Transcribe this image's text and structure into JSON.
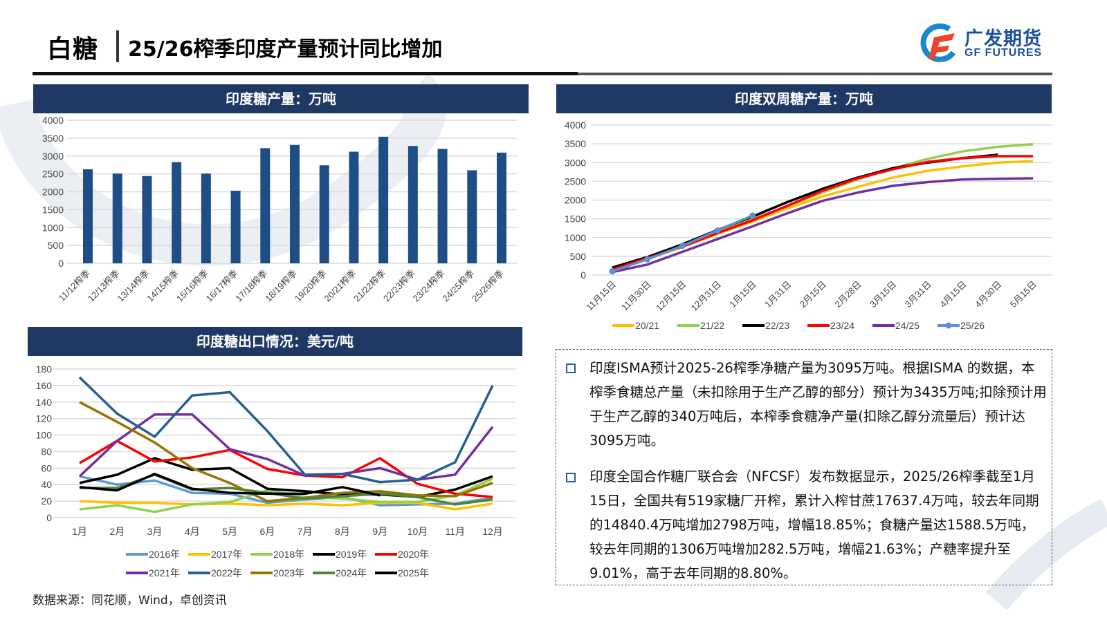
{
  "header": {
    "section": "白糖",
    "title": "25/26榨季印度产量预计同比增加",
    "logo_cn": "广发期货",
    "logo_en": "GF FUTURES"
  },
  "panels": {
    "production_title": "印度糖产量：万吨",
    "biweekly_title": "印度双周糖产量：万吨",
    "export_title": "印度糖出口情况：美元/吨"
  },
  "notes": [
    "印度ISMA预计2025-26榨季净糖产量为3095万吨。根据ISMA 的数据，本榨季食糖总产量（未扣除用于生产乙醇的部分）预计为3435万吨;扣除预计用于生产乙醇的340万吨后，本榨季食糖净产量(扣除乙醇分流量后）预计达3095万吨。",
    "印度全国合作糖厂联合会（NFCSF）发布数据显示，2025/26榨季截至1月15日，全国共有519家糖厂开榨，累计入榨甘蔗17637.4万吨，较去年同期的14840.4万吨增加2798万吨，增幅18.85%；食糖产量达1588.5万吨，较去年同期的1306万吨增加282.5万吨，增幅21.63%；产糖率提升至9.01%，高于去年同期的8.80%。"
  ],
  "footer": "数据来源：同花顺，Wind，卓创资讯",
  "colors": {
    "header_bg": "#1f3864",
    "bar": "#1f4e87",
    "bullet": "#2f55a4"
  },
  "chart_data": [
    {
      "type": "bar",
      "title": "印度糖产量：万吨",
      "categories": [
        "11/12榨季",
        "12/13榨季",
        "13/14榨季",
        "14/15榨季",
        "15/16榨季",
        "16/17榨季",
        "17/18榨季",
        "18/19榨季",
        "19/20榨季",
        "20/21榨季",
        "21/22榨季",
        "22/23榨季",
        "23/24榨季",
        "24/25榨季",
        "25/26榨季"
      ],
      "values": [
        2630,
        2510,
        2440,
        2830,
        2510,
        2030,
        3220,
        3310,
        2740,
        3120,
        3540,
        3280,
        3200,
        2600,
        3095
      ],
      "ylim": [
        0,
        4000
      ],
      "yticks": [
        0,
        500,
        1000,
        1500,
        2000,
        2500,
        3000,
        3500,
        4000
      ],
      "grid": true,
      "color": "#1f4e87"
    },
    {
      "type": "line",
      "title": "印度双周糖产量：万吨",
      "categories": [
        "11月15日",
        "11月30日",
        "12月15日",
        "12月31日",
        "1月15日",
        "1月31日",
        "2月15日",
        "2月28日",
        "3月15日",
        "3月31日",
        "4月15日",
        "4月30日",
        "5月15日"
      ],
      "ylim": [
        0,
        4000
      ],
      "yticks": [
        0,
        500,
        1000,
        1500,
        2000,
        2500,
        3000,
        3500,
        4000
      ],
      "grid": true,
      "legend": "bottom",
      "series": [
        {
          "name": "20/21",
          "color": "#ffc000",
          "values": [
            150,
            430,
            750,
            1100,
            1430,
            1780,
            2100,
            2350,
            2600,
            2780,
            2900,
            3000,
            3040
          ]
        },
        {
          "name": "21/22",
          "color": "#92d050",
          "values": [
            200,
            470,
            800,
            1180,
            1500,
            1830,
            2200,
            2550,
            2850,
            3100,
            3300,
            3420,
            3490
          ]
        },
        {
          "name": "22/23",
          "color": "#000000",
          "values": [
            200,
            480,
            820,
            1200,
            1560,
            1950,
            2300,
            2600,
            2850,
            3000,
            3120,
            3210,
            null
          ]
        },
        {
          "name": "23/24",
          "color": "#ff0000",
          "values": [
            150,
            450,
            760,
            1120,
            1460,
            1850,
            2250,
            2580,
            2820,
            3020,
            3120,
            3170,
            3170
          ]
        },
        {
          "name": "24/25",
          "color": "#7030a0",
          "values": [
            80,
            280,
            620,
            960,
            1300,
            1650,
            1980,
            2200,
            2380,
            2480,
            2550,
            2570,
            2580
          ]
        },
        {
          "name": "25/26",
          "color": "#5b8fd6",
          "markers": true,
          "values": [
            100,
            420,
            780,
            1190,
            1588,
            null,
            null,
            null,
            null,
            null,
            null,
            null,
            null
          ]
        }
      ]
    },
    {
      "type": "line",
      "title": "印度糖出口情况：美元/吨",
      "categories": [
        "1月",
        "2月",
        "3月",
        "4月",
        "5月",
        "6月",
        "7月",
        "8月",
        "9月",
        "10月",
        "11月",
        "12月"
      ],
      "ylim": [
        0,
        180
      ],
      "yticks": [
        0,
        20,
        40,
        60,
        80,
        100,
        120,
        140,
        160,
        180
      ],
      "grid": true,
      "legend": "bottom",
      "series": [
        {
          "name": "2016年",
          "color": "#5b9bd5",
          "values": [
            50,
            40,
            45,
            30,
            29,
            18,
            22,
            25,
            15,
            16,
            17,
            24
          ]
        },
        {
          "name": "2017年",
          "color": "#ffc000",
          "values": [
            20,
            18,
            18,
            16,
            17,
            15,
            17,
            15,
            18,
            18,
            10,
            17
          ]
        },
        {
          "name": "2018年",
          "color": "#92d050",
          "values": [
            10,
            15,
            7,
            16,
            19,
            33,
            25,
            23,
            19,
            19,
            27,
            47
          ]
        },
        {
          "name": "2019年",
          "color": "#000000",
          "values": [
            42,
            52,
            72,
            58,
            60,
            35,
            32,
            28,
            28,
            25,
            34,
            50
          ]
        },
        {
          "name": "2020年",
          "color": "#ff0000",
          "values": [
            66,
            93,
            68,
            73,
            82,
            59,
            51,
            49,
            72,
            41,
            29,
            25
          ]
        },
        {
          "name": "2021年",
          "color": "#7030a0",
          "values": [
            50,
            93,
            125,
            125,
            83,
            71,
            51,
            53,
            60,
            46,
            52,
            110
          ]
        },
        {
          "name": "2022年",
          "color": "#255e91",
          "values": [
            170,
            126,
            98,
            148,
            152,
            105,
            52,
            53,
            43,
            46,
            67,
            160
          ]
        },
        {
          "name": "2023年",
          "color": "#997300",
          "values": [
            140,
            116,
            91,
            60,
            42,
            20,
            24,
            30,
            32,
            27,
            26,
            42
          ]
        },
        {
          "name": "2024年",
          "color": "#538135",
          "values": [
            36,
            36,
            52,
            34,
            36,
            30,
            23,
            26,
            29,
            25,
            16,
            22
          ]
        },
        {
          "name": "2025年",
          "color": "#000000",
          "values": [
            37,
            33,
            53,
            35,
            30,
            29,
            29,
            37,
            27,
            null,
            null,
            null
          ]
        }
      ]
    }
  ]
}
